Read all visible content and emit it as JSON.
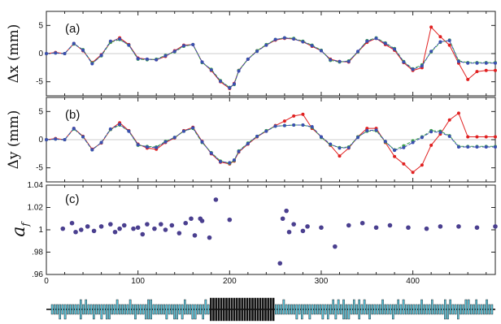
{
  "chart_data": [
    {
      "type": "line",
      "panel_label": "(a)",
      "ylabel": "Δx (mm)",
      "ylim": [
        -7.5,
        7.5
      ],
      "yticks": [
        -5,
        0,
        5
      ],
      "xlim": [
        0,
        490
      ],
      "series": [
        {
          "color": "#e02020",
          "x": [
            0,
            10,
            20,
            30,
            40,
            50,
            60,
            70,
            80,
            90,
            100,
            110,
            120,
            130,
            140,
            150,
            160,
            170,
            180,
            190,
            200,
            205,
            210,
            220,
            230,
            240,
            250,
            260,
            270,
            280,
            290,
            300,
            310,
            320,
            330,
            340,
            350,
            360,
            370,
            380,
            390,
            400,
            410,
            420,
            430,
            440,
            450,
            460,
            470,
            480,
            490
          ],
          "y": [
            0,
            0.2,
            0,
            1.8,
            0.5,
            -1.6,
            -0.2,
            2,
            2.8,
            1.6,
            -0.8,
            -1,
            -1.1,
            -0.5,
            0.5,
            1.5,
            1.6,
            -1.5,
            -3,
            -5,
            -6.2,
            -5.3,
            -3,
            -1,
            0.5,
            1.5,
            2.4,
            2.7,
            2.6,
            2.1,
            1.3,
            0.5,
            -1,
            -1.4,
            -1.5,
            0.3,
            2,
            2.7,
            1.6,
            0.6,
            -1.6,
            -3,
            -2.5,
            4.7,
            3,
            1.5,
            -1.7,
            -4.6,
            -3.2,
            -3,
            -3
          ]
        },
        {
          "color": "#3aa048",
          "x": [
            0,
            10,
            20,
            30,
            40,
            50,
            60,
            70,
            80,
            90,
            100,
            110,
            120,
            130,
            140,
            150,
            160,
            170,
            180,
            190,
            200,
            205,
            210,
            220,
            230,
            240,
            250,
            260,
            270,
            280,
            290,
            300,
            310,
            320,
            330,
            340,
            350,
            360,
            370,
            380,
            390,
            400,
            410,
            420,
            430,
            440,
            450,
            460,
            470,
            480,
            490
          ],
          "y": [
            0,
            0.1,
            0,
            1.7,
            0.7,
            -1.7,
            -0.4,
            2,
            2.5,
            1.5,
            -1,
            -1.1,
            -1,
            -0.3,
            0.3,
            1.3,
            1.6,
            -1.6,
            -2.8,
            -4.8,
            -6,
            -5.5,
            -3,
            -1,
            0.5,
            1.6,
            2.5,
            2.8,
            2.7,
            2.2,
            1.5,
            0.6,
            -1.2,
            -1.5,
            -1.3,
            0.3,
            2.3,
            2.8,
            1.9,
            0.9,
            -1.4,
            -2.7,
            -2,
            0.3,
            2,
            2.4,
            -1.3,
            -1.6,
            -1.6,
            -1.6,
            -1.6
          ]
        },
        {
          "color": "#3a4fb0",
          "x": [
            0,
            10,
            20,
            30,
            40,
            50,
            60,
            70,
            80,
            90,
            100,
            110,
            120,
            130,
            140,
            150,
            160,
            170,
            180,
            190,
            200,
            205,
            210,
            220,
            230,
            240,
            250,
            260,
            270,
            280,
            290,
            300,
            310,
            320,
            330,
            340,
            350,
            360,
            370,
            380,
            390,
            400,
            410,
            420,
            430,
            440,
            450,
            460,
            470,
            480,
            490
          ],
          "y": [
            0,
            0.1,
            0,
            1.8,
            0.6,
            -1.8,
            -0.3,
            2.2,
            2.6,
            1.5,
            -0.9,
            -1,
            -1.1,
            -0.4,
            0.4,
            1.4,
            1.6,
            -1.5,
            -2.9,
            -4.9,
            -6.1,
            -5.4,
            -3.1,
            -1,
            0.4,
            1.5,
            2.5,
            2.8,
            2.6,
            2.1,
            1.4,
            0.5,
            -1.1,
            -1.4,
            -1.4,
            0.4,
            2.2,
            2.7,
            1.8,
            0.8,
            -1.5,
            -2.8,
            -2.2,
            0.4,
            2.1,
            2.3,
            -1.4,
            -1.7,
            -1.7,
            -1.7,
            -1.7
          ]
        }
      ]
    },
    {
      "type": "line",
      "panel_label": "(b)",
      "ylabel": "Δy (mm)",
      "ylim": [
        -7.5,
        7.5
      ],
      "yticks": [
        -5,
        0,
        5
      ],
      "xlim": [
        0,
        490
      ],
      "series": [
        {
          "color": "#e02020",
          "x": [
            0,
            10,
            20,
            30,
            40,
            50,
            60,
            70,
            80,
            90,
            100,
            110,
            120,
            130,
            140,
            150,
            160,
            170,
            180,
            190,
            200,
            205,
            210,
            220,
            230,
            240,
            250,
            260,
            270,
            280,
            290,
            300,
            310,
            320,
            330,
            340,
            350,
            360,
            370,
            380,
            390,
            400,
            410,
            420,
            430,
            440,
            450,
            460,
            470,
            480,
            490
          ],
          "y": [
            0,
            0.2,
            0,
            2,
            0.6,
            -1.7,
            -0.6,
            1.8,
            3,
            1.6,
            -0.8,
            -1.5,
            -1.7,
            -0.5,
            0.3,
            1.6,
            2.2,
            -0.3,
            -2.5,
            -4,
            -4.3,
            -3.8,
            -2.2,
            -0.8,
            0.5,
            1.5,
            2.5,
            3.3,
            4.2,
            4.5,
            2,
            0.5,
            -1,
            -2.9,
            -1.5,
            0.5,
            2,
            2,
            -0.5,
            -3,
            -4.3,
            -5.8,
            -4.5,
            -1,
            1,
            3.5,
            4.7,
            0.5,
            0.5,
            0.5,
            0.5
          ]
        },
        {
          "color": "#3aa048",
          "x": [
            0,
            10,
            20,
            30,
            40,
            50,
            60,
            70,
            80,
            90,
            100,
            110,
            120,
            130,
            140,
            150,
            160,
            170,
            180,
            190,
            200,
            205,
            210,
            220,
            230,
            240,
            250,
            260,
            270,
            280,
            290,
            300,
            310,
            320,
            330,
            340,
            350,
            360,
            370,
            380,
            390,
            400,
            410,
            420,
            430,
            440,
            450,
            460,
            470,
            480,
            490
          ],
          "y": [
            0,
            0.1,
            0,
            1.9,
            0.5,
            -1.8,
            -0.5,
            1.8,
            2.6,
            1.5,
            -1,
            -1.2,
            -1.3,
            -0.3,
            0.4,
            1.5,
            2,
            -0.5,
            -2.3,
            -3.8,
            -4.2,
            -3.7,
            -2,
            -0.6,
            0.6,
            1.6,
            2.4,
            2.5,
            2.6,
            2.6,
            2.2,
            0.4,
            -0.9,
            -1.4,
            -1.3,
            0.5,
            1.5,
            1.6,
            -0.4,
            -1.8,
            -1.1,
            -0.2,
            0.5,
            1.6,
            1.5,
            0.7,
            -1.2,
            -1.2,
            -1.2,
            -1.2,
            -1.2
          ]
        },
        {
          "color": "#3a4fb0",
          "x": [
            0,
            10,
            20,
            30,
            40,
            50,
            60,
            70,
            80,
            90,
            100,
            110,
            120,
            130,
            140,
            150,
            160,
            170,
            180,
            190,
            200,
            205,
            210,
            220,
            230,
            240,
            250,
            260,
            270,
            280,
            290,
            300,
            310,
            320,
            330,
            340,
            350,
            360,
            370,
            380,
            390,
            400,
            410,
            420,
            430,
            440,
            450,
            460,
            470,
            480,
            490
          ],
          "y": [
            0,
            0.1,
            0,
            2,
            0.5,
            -1.8,
            -0.5,
            1.9,
            2.7,
            1.5,
            -0.9,
            -1.3,
            -1.4,
            -0.4,
            0.4,
            1.5,
            2.1,
            -0.4,
            -2.4,
            -3.9,
            -4.1,
            -3.6,
            -2.1,
            -0.7,
            0.6,
            1.5,
            2.4,
            2.5,
            2.6,
            2.6,
            2.3,
            0.5,
            -0.8,
            -1.5,
            -1.4,
            0.4,
            1.6,
            1.7,
            -0.3,
            -1.9,
            -1.4,
            -0.5,
            0.4,
            1.4,
            1.3,
            0.6,
            -1.3,
            -1.3,
            -1.3,
            -1.3,
            -1.3
          ]
        }
      ]
    },
    {
      "type": "scatter",
      "panel_label": "(c)",
      "ylabel": "a",
      "ylabel_subscript": "f",
      "ylim": [
        0.96,
        1.04
      ],
      "yticks": [
        0.96,
        0.98,
        1,
        1.02,
        1.04
      ],
      "ytick_labels": [
        ".96",
        ".98",
        "1",
        "1.02",
        "1.04"
      ],
      "xlim": [
        0,
        490
      ],
      "xticks": [
        0,
        100,
        200,
        300,
        400
      ],
      "series": [
        {
          "color": "#4a3f8f",
          "x": [
            18,
            28,
            32,
            38,
            45,
            52,
            60,
            70,
            75,
            80,
            85,
            95,
            100,
            105,
            110,
            118,
            125,
            130,
            137,
            145,
            152,
            158,
            162,
            168,
            170,
            178,
            185,
            200,
            255,
            258,
            262,
            265,
            270,
            280,
            285,
            300,
            315,
            330,
            345,
            360,
            375,
            395,
            415,
            430,
            450,
            470,
            490
          ],
          "y": [
            1.001,
            1.006,
            0.998,
            1.0,
            1.003,
            0.999,
            1.003,
            1.005,
            0.998,
            1.001,
            1.004,
            1.001,
            1.002,
            0.996,
            1.005,
            1.001,
            1.005,
            1.0,
            1.004,
            0.997,
            1.006,
            1.01,
            0.995,
            1.01,
            1.008,
            0.993,
            1.027,
            1.009,
            0.97,
            1.01,
            1.017,
            0.998,
            1.005,
            0.999,
            1.003,
            1.002,
            0.985,
            1.004,
            1.006,
            1.002,
            1.004,
            1.002,
            1.001,
            1.003,
            1.003,
            1.002,
            1.003
          ]
        }
      ]
    }
  ],
  "beamline_strip": {
    "fill": "#5bc0d6"
  }
}
